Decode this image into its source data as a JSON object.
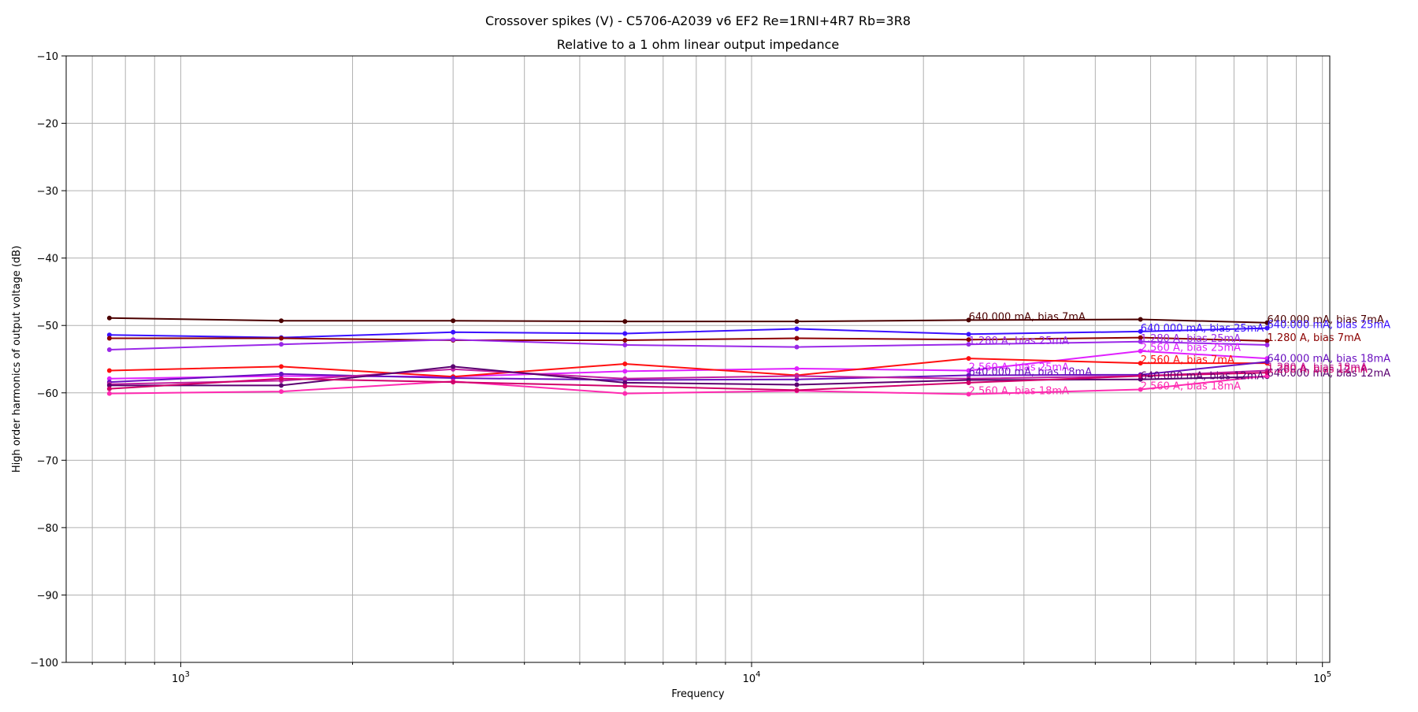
{
  "chart_data": {
    "type": "line",
    "title": "Crossover spikes (V) - C5706-A2039 v6 EF2 Re=1RNI+4R7 Rb=3R8",
    "subtitle": "Relative to a 1 ohm linear output impedance",
    "xlabel": "Frequency",
    "ylabel": "High order harmonics of output voltage (dB)",
    "xscale": "log",
    "xlim": [
      630,
      103000
    ],
    "ylim": [
      -100,
      -10
    ],
    "grid": true,
    "x_tick_labels": [
      {
        "x": 1000,
        "base": "10",
        "exp": "3"
      },
      {
        "x": 10000,
        "base": "10",
        "exp": "4"
      },
      {
        "x": 100000,
        "base": "10",
        "exp": "5"
      }
    ],
    "y_ticks": [
      -10,
      -20,
      -30,
      -40,
      -50,
      -60,
      -70,
      -80,
      -90,
      -100
    ],
    "y_tick_labels": [
      "−10",
      "−20",
      "−30",
      "−40",
      "−50",
      "−60",
      "−70",
      "−80",
      "−90",
      "−100"
    ],
    "x": [
      750,
      1500,
      3000,
      6000,
      12000,
      24000,
      48000,
      80000
    ],
    "series": [
      {
        "name": "640.000 mA, bias 7mA",
        "color": "#4b0000",
        "values": [
          -48.9,
          -49.3,
          -49.3,
          -49.4,
          -49.4,
          -49.2,
          -49.1,
          -49.6
        ],
        "label_x": [
          24000,
          80000
        ]
      },
      {
        "name": "640.000 mA, bias 25mA",
        "color": "#3a10ff",
        "values": [
          -51.4,
          -51.8,
          -51.0,
          -51.2,
          -50.5,
          -51.3,
          -50.9,
          -50.4
        ],
        "label_x": [
          48000,
          80000
        ]
      },
      {
        "name": "1.280 A, bias 7mA",
        "color": "#8b0000",
        "values": [
          -51.9,
          -51.9,
          -52.2,
          -52.2,
          -51.9,
          -52.1,
          -51.8,
          -52.3
        ],
        "label_x": [
          80000
        ]
      },
      {
        "name": "1.280 A, bias 25mA",
        "color": "#9a28e8",
        "values": [
          -53.6,
          -52.8,
          -52.1,
          -52.9,
          -53.2,
          -52.8,
          -52.4,
          -52.9
        ],
        "label_x": [
          24000,
          48000
        ]
      },
      {
        "name": "2.560 A, bias 25mA",
        "color": "#e020ff",
        "values": [
          -57.9,
          -57.5,
          -57.6,
          -56.8,
          -56.4,
          -56.7,
          -53.8,
          -54.9
        ],
        "label_x": [
          24000,
          48000
        ]
      },
      {
        "name": "2.560 A, bias 7mA",
        "color": "#ff1010",
        "values": [
          -56.7,
          -56.1,
          -57.6,
          -55.7,
          -57.4,
          -54.9,
          -55.6,
          -55.6
        ],
        "label_x": [
          48000
        ]
      },
      {
        "name": "640.000 mA, bias 18mA",
        "color": "#6a10c0",
        "values": [
          -58.4,
          -57.2,
          -57.8,
          -58.1,
          -58.0,
          -57.4,
          -57.3,
          -55.4
        ],
        "label_x": [
          24000,
          80000
        ]
      },
      {
        "name": "1.280 A, bias 18mA",
        "color": "#c020a0",
        "values": [
          -58.7,
          -58.2,
          -56.5,
          -57.9,
          -57.5,
          -57.9,
          -57.5,
          -56.7
        ],
        "label_x": [
          80000
        ]
      },
      {
        "name": "640.000 mA, bias 12mA",
        "color": "#5a0070",
        "values": [
          -58.9,
          -58.9,
          -56.1,
          -58.5,
          -58.8,
          -58.1,
          -58.0,
          -57.6
        ],
        "label_x": [
          48000,
          80000
        ]
      },
      {
        "name": "2.560 A, bias 18mA",
        "color": "#ff2ab0",
        "values": [
          -60.1,
          -59.8,
          -58.3,
          -60.1,
          -59.7,
          -60.2,
          -59.5,
          -57.5
        ],
        "label_x": [
          24000,
          48000
        ]
      },
      {
        "name": "1.280 A, bias 12mA",
        "color": "#d0006a",
        "values": [
          -59.4,
          -57.9,
          -58.4,
          -59.0,
          -59.6,
          -58.5,
          -57.5,
          -57.0
        ],
        "label_x": [
          80000
        ]
      }
    ]
  }
}
